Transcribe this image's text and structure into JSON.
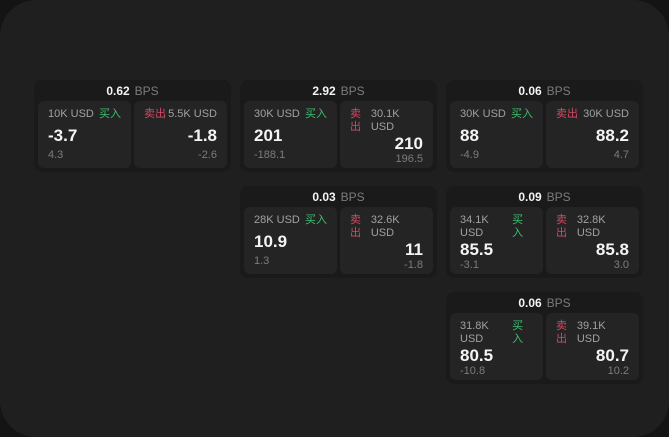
{
  "labels": {
    "bps": "BPS",
    "buy": "买入",
    "sell": "卖出"
  },
  "colors": {
    "backdrop": "#141414",
    "panel": "#1f1f1f",
    "card": "#1a1a1a",
    "tile": "#242424",
    "buy_green": "#3fbf6f",
    "sell_red": "#cf4a63",
    "text_primary": "#f4f4f4",
    "text_secondary": "#9fa1a3",
    "text_muted": "#7a7c7e"
  },
  "cards": [
    {
      "col": 1,
      "row": 1,
      "bps": "0.62",
      "buy": {
        "amount": "10K USD",
        "value": "-3.7",
        "sub": "4.3"
      },
      "sell": {
        "amount": "5.5K USD",
        "value": "-1.8",
        "sub": "-2.6"
      }
    },
    {
      "col": 2,
      "row": 1,
      "bps": "2.92",
      "buy": {
        "amount": "30K USD",
        "value": "201",
        "sub": "-188.1"
      },
      "sell": {
        "amount": "30.1K USD",
        "value": "210",
        "sub": "196.5"
      }
    },
    {
      "col": 3,
      "row": 1,
      "bps": "0.06",
      "buy": {
        "amount": "30K USD",
        "value": "88",
        "sub": "-4.9"
      },
      "sell": {
        "amount": "30K USD",
        "value": "88.2",
        "sub": "4.7"
      }
    },
    {
      "col": 2,
      "row": 2,
      "bps": "0.03",
      "buy": {
        "amount": "28K USD",
        "value": "10.9",
        "sub": "1.3"
      },
      "sell": {
        "amount": "32.6K USD",
        "value": "11",
        "sub": "-1.8"
      }
    },
    {
      "col": 3,
      "row": 2,
      "bps": "0.09",
      "buy": {
        "amount": "34.1K USD",
        "value": "85.5",
        "sub": "-3.1"
      },
      "sell": {
        "amount": "32.8K USD",
        "value": "85.8",
        "sub": "3.0"
      }
    },
    {
      "col": 3,
      "row": 3,
      "bps": "0.06",
      "buy": {
        "amount": "31.8K USD",
        "value": "80.5",
        "sub": "-10.8"
      },
      "sell": {
        "amount": "39.1K USD",
        "value": "80.7",
        "sub": "10.2"
      }
    }
  ]
}
